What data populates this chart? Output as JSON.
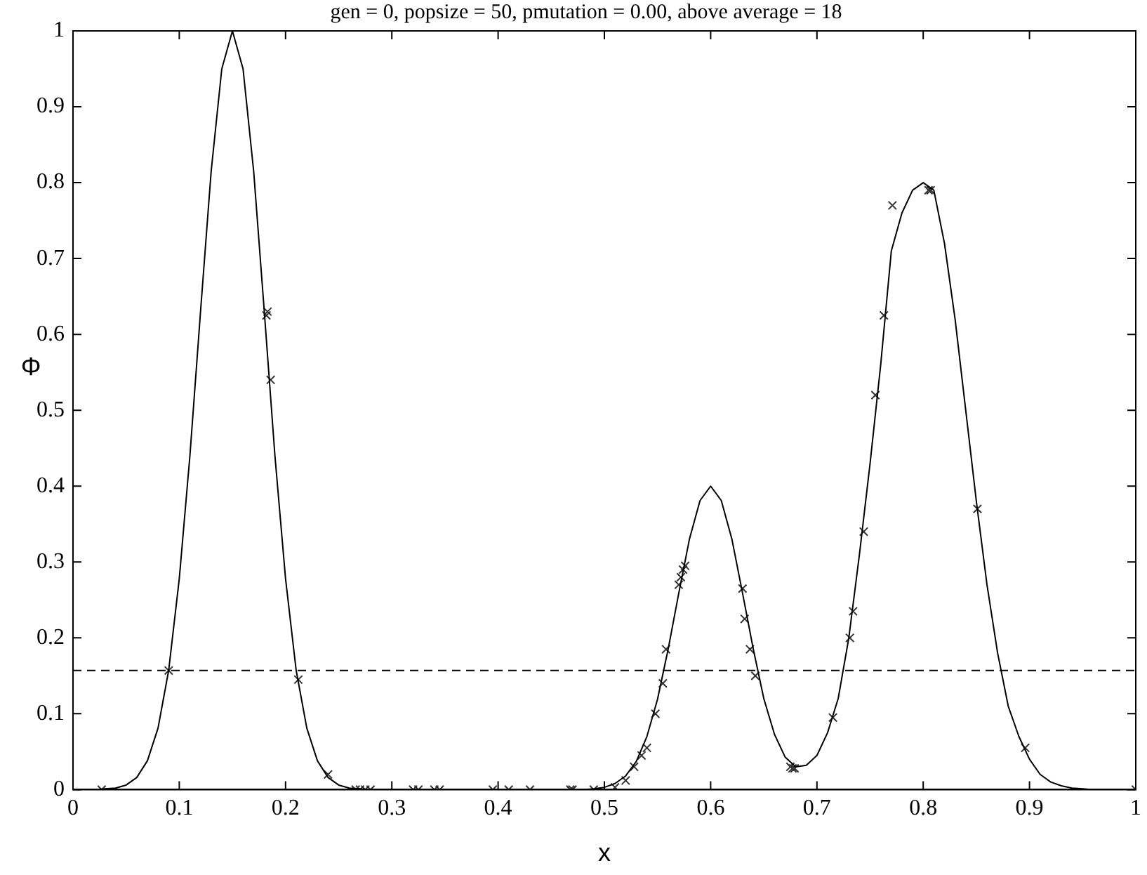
{
  "chart_data": {
    "type": "line",
    "title": "gen = 0, popsize = 50, pmutation = 0.00, above average = 18",
    "xlabel": "x",
    "ylabel": "Φ",
    "xlim": [
      0,
      1
    ],
    "xticks": [
      0,
      0.1,
      0.2,
      0.3,
      0.4,
      0.5,
      0.6,
      0.7,
      0.8,
      0.9,
      1
    ],
    "ylim": [
      0,
      1
    ],
    "yticks": [
      0,
      0.1,
      0.2,
      0.3,
      0.4,
      0.5,
      0.6,
      0.7,
      0.8,
      0.9,
      1
    ],
    "grid": false,
    "legend": false,
    "ref_lines": [
      {
        "axis": "y",
        "value": 0.157,
        "color": "#000000",
        "line_style": "dashed"
      }
    ],
    "series": [
      {
        "type": "line",
        "color": "#000000",
        "marker": "none",
        "line_style": "solid",
        "x": [
          0,
          0.01,
          0.02,
          0.03,
          0.04,
          0.05,
          0.06,
          0.07,
          0.08,
          0.09,
          0.1,
          0.11,
          0.12,
          0.13,
          0.14,
          0.15,
          0.16,
          0.17,
          0.18,
          0.19,
          0.2,
          0.21,
          0.22,
          0.23,
          0.24,
          0.25,
          0.26,
          0.27,
          0.28,
          0.3,
          0.35,
          0.4,
          0.45,
          0.47,
          0.48,
          0.49,
          0.5,
          0.51,
          0.52,
          0.53,
          0.54,
          0.55,
          0.56,
          0.57,
          0.58,
          0.59,
          0.6,
          0.61,
          0.62,
          0.63,
          0.64,
          0.65,
          0.66,
          0.67,
          0.68,
          0.69,
          0.7,
          0.71,
          0.72,
          0.73,
          0.74,
          0.75,
          0.76,
          0.77,
          0.78,
          0.79,
          0.8,
          0.81,
          0.82,
          0.83,
          0.84,
          0.85,
          0.86,
          0.87,
          0.88,
          0.89,
          0.9,
          0.91,
          0.92,
          0.93,
          0.94,
          0.95,
          0.96,
          1
        ],
        "values": [
          0,
          0,
          0,
          0.001,
          0.002,
          0.006,
          0.016,
          0.038,
          0.081,
          0.157,
          0.278,
          0.44,
          0.63,
          0.815,
          0.95,
          1,
          0.95,
          0.815,
          0.63,
          0.44,
          0.278,
          0.157,
          0.081,
          0.038,
          0.016,
          0.006,
          0.002,
          0.001,
          0,
          0,
          0,
          0,
          0,
          0,
          0,
          0.001,
          0.003,
          0.008,
          0.018,
          0.037,
          0.07,
          0.119,
          0.185,
          0.259,
          0.33,
          0.381,
          0.4,
          0.381,
          0.33,
          0.259,
          0.186,
          0.12,
          0.073,
          0.043,
          0.03,
          0.032,
          0.045,
          0.075,
          0.12,
          0.2,
          0.31,
          0.43,
          0.56,
          0.71,
          0.76,
          0.79,
          0.8,
          0.79,
          0.72,
          0.62,
          0.5,
          0.38,
          0.27,
          0.18,
          0.11,
          0.07,
          0.04,
          0.02,
          0.01,
          0.005,
          0.002,
          0.001,
          0,
          0
        ]
      },
      {
        "type": "scatter",
        "color": "#333333",
        "marker": "cross",
        "x": [
          0.027,
          0.09,
          0.182,
          0.183,
          0.186,
          0.212,
          0.24,
          0.266,
          0.27,
          0.275,
          0.28,
          0.32,
          0.325,
          0.34,
          0.345,
          0.395,
          0.41,
          0.43,
          0.468,
          0.47,
          0.49,
          0.51,
          0.52,
          0.528,
          0.535,
          0.54,
          0.548,
          0.555,
          0.558,
          0.57,
          0.572,
          0.574,
          0.576,
          0.63,
          0.632,
          0.637,
          0.642,
          0.675,
          0.677,
          0.679,
          0.715,
          0.731,
          0.734,
          0.744,
          0.755,
          0.763,
          0.771,
          0.805,
          0.807,
          0.851,
          0.896,
          1
        ],
        "values": [
          0,
          0.157,
          0.625,
          0.63,
          0.54,
          0.145,
          0.02,
          0,
          0,
          0,
          0,
          0,
          0,
          0,
          0,
          0,
          0,
          0,
          0,
          0,
          0,
          0.003,
          0.012,
          0.03,
          0.045,
          0.055,
          0.1,
          0.14,
          0.185,
          0.27,
          0.28,
          0.29,
          0.295,
          0.265,
          0.225,
          0.185,
          0.15,
          0.03,
          0.028,
          0.028,
          0.095,
          0.2,
          0.235,
          0.34,
          0.52,
          0.625,
          0.77,
          0.79,
          0.79,
          0.37,
          0.055,
          0
        ]
      }
    ]
  }
}
